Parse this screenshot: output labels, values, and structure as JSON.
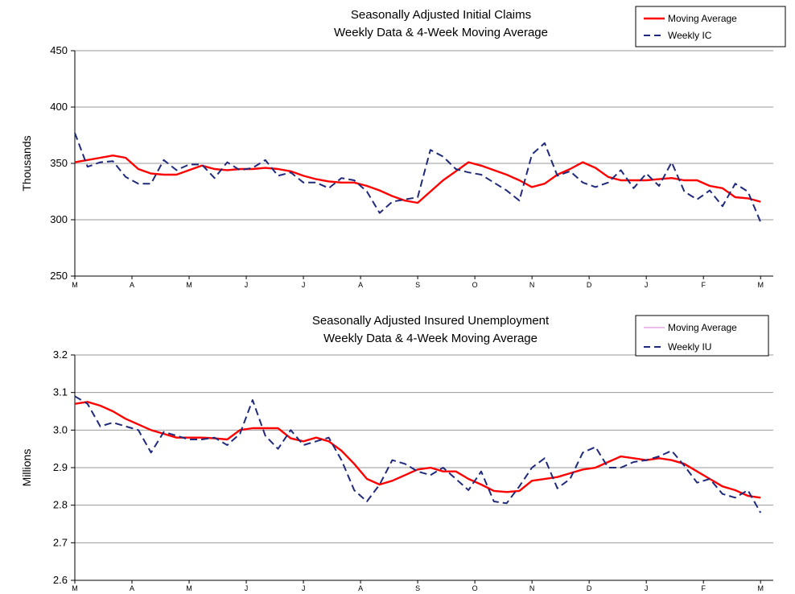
{
  "chart_data": [
    {
      "type": "line",
      "title": [
        "Seasonally Adjusted Initial Claims",
        "Weekly Data & 4-Week Moving Average"
      ],
      "ylabel": "Thousands",
      "ylim": [
        250,
        450
      ],
      "yticks": [
        250,
        300,
        350,
        400,
        450
      ],
      "xlim": [
        0,
        55
      ],
      "month_ticks": [
        {
          "x": 0,
          "label": "M"
        },
        {
          "x": 4.5,
          "label": "A"
        },
        {
          "x": 9,
          "label": "M"
        },
        {
          "x": 13.5,
          "label": "J"
        },
        {
          "x": 18,
          "label": "J"
        },
        {
          "x": 22.5,
          "label": "A"
        },
        {
          "x": 27,
          "label": "S"
        },
        {
          "x": 31.5,
          "label": "O"
        },
        {
          "x": 36,
          "label": "N"
        },
        {
          "x": 40.5,
          "label": "D"
        },
        {
          "x": 45,
          "label": "J"
        },
        {
          "x": 49.5,
          "label": "F"
        },
        {
          "x": 54,
          "label": "M"
        }
      ],
      "grid": true,
      "legend": "top-right",
      "series": [
        {
          "name": "Moving Average",
          "style": "solid",
          "color": "#ff0000",
          "values": [
            351,
            353,
            355,
            357,
            355,
            345,
            341,
            340,
            340,
            344,
            348,
            345,
            344,
            345,
            345,
            346,
            345,
            343,
            339,
            336,
            334,
            333,
            333,
            330,
            326,
            321,
            317,
            315,
            325,
            335,
            343,
            351,
            348,
            344,
            340,
            335,
            329,
            332,
            340,
            345,
            351,
            346,
            338,
            335,
            335,
            335,
            336,
            337,
            335,
            335,
            330,
            328,
            320,
            319,
            316
          ]
        },
        {
          "name": "Weekly IC",
          "style": "dashed",
          "color": "#1f2a7a",
          "values": [
            377,
            347,
            351,
            352,
            338,
            332,
            332,
            353,
            344,
            349,
            349,
            337,
            351,
            344,
            346,
            353,
            339,
            342,
            333,
            333,
            328,
            337,
            335,
            325,
            306,
            316,
            318,
            320,
            362,
            356,
            345,
            342,
            340,
            333,
            326,
            317,
            358,
            368,
            339,
            343,
            333,
            329,
            333,
            344,
            328,
            341,
            330,
            351,
            325,
            318,
            326,
            312,
            332,
            325,
            298
          ]
        }
      ]
    },
    {
      "type": "line",
      "title": [
        "Seasonally Adjusted Insured Unemployment",
        "Weekly Data & 4-Week Moving Average"
      ],
      "ylabel": "Millions",
      "ylim": [
        2.6,
        3.2
      ],
      "yticks": [
        "2.6",
        "2.7",
        "2.8",
        "2.9",
        "3.0",
        "3.1",
        "3.2"
      ],
      "xlim": [
        0,
        55
      ],
      "month_ticks": [
        {
          "x": 0,
          "label": "M"
        },
        {
          "x": 4.5,
          "label": "A"
        },
        {
          "x": 9,
          "label": "M"
        },
        {
          "x": 13.5,
          "label": "J"
        },
        {
          "x": 18,
          "label": "J"
        },
        {
          "x": 22.5,
          "label": "A"
        },
        {
          "x": 27,
          "label": "S"
        },
        {
          "x": 31.5,
          "label": "O"
        },
        {
          "x": 36,
          "label": "N"
        },
        {
          "x": 40.5,
          "label": "D"
        },
        {
          "x": 45,
          "label": "J"
        },
        {
          "x": 49.5,
          "label": "F"
        },
        {
          "x": 54,
          "label": "M"
        }
      ],
      "grid": true,
      "legend": "top-right",
      "series": [
        {
          "name": "Moving Average",
          "style": "solid",
          "color": "#ff0000",
          "values": [
            3.07,
            3.075,
            3.065,
            3.05,
            3.03,
            3.015,
            3.0,
            2.99,
            2.98,
            2.98,
            2.98,
            2.978,
            2.975,
            3.0,
            3.005,
            3.005,
            3.005,
            2.978,
            2.97,
            2.98,
            2.97,
            2.945,
            2.91,
            2.87,
            2.855,
            2.865,
            2.88,
            2.895,
            2.9,
            2.89,
            2.89,
            2.87,
            2.855,
            2.838,
            2.835,
            2.838,
            2.865,
            2.87,
            2.875,
            2.885,
            2.895,
            2.9,
            2.915,
            2.93,
            2.925,
            2.92,
            2.925,
            2.92,
            2.91,
            2.89,
            2.87,
            2.85,
            2.84,
            2.825,
            2.82
          ]
        },
        {
          "name": "Weekly IU",
          "style": "dashed",
          "color": "#1f2a7a",
          "values": [
            3.09,
            3.07,
            3.01,
            3.02,
            3.01,
            3.0,
            2.94,
            2.995,
            2.985,
            2.975,
            2.975,
            2.98,
            2.96,
            2.99,
            3.08,
            2.985,
            2.95,
            3.0,
            2.96,
            2.97,
            2.98,
            2.92,
            2.84,
            2.81,
            2.855,
            2.92,
            2.91,
            2.89,
            2.88,
            2.9,
            2.87,
            2.84,
            2.89,
            2.81,
            2.805,
            2.85,
            2.9,
            2.925,
            2.845,
            2.87,
            2.94,
            2.955,
            2.9,
            2.9,
            2.915,
            2.92,
            2.93,
            2.945,
            2.905,
            2.86,
            2.87,
            2.83,
            2.82,
            2.84,
            2.78
          ]
        }
      ]
    }
  ]
}
